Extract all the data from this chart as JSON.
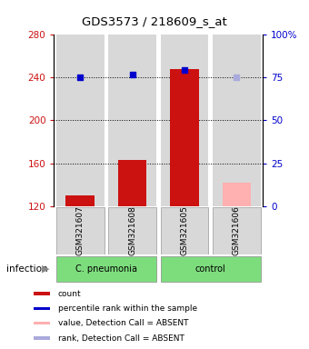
{
  "title": "GDS3573 / 218609_s_at",
  "samples": [
    "GSM321607",
    "GSM321608",
    "GSM321605",
    "GSM321606"
  ],
  "bar_values": [
    130,
    163,
    248,
    null
  ],
  "bar_absent_values": [
    null,
    null,
    null,
    142
  ],
  "bar_bottom": 120,
  "rank_values": [
    240,
    243,
    247,
    null
  ],
  "rank_absent_values": [
    null,
    null,
    null,
    240
  ],
  "ylim_left": [
    120,
    280
  ],
  "ylim_right": [
    0,
    100
  ],
  "yticks_left": [
    120,
    160,
    200,
    240,
    280
  ],
  "yticks_right": [
    0,
    25,
    50,
    75,
    100
  ],
  "ytick_labels_right": [
    "0",
    "25",
    "50",
    "75",
    "100%"
  ],
  "group_label": "infection",
  "bar_color": "#cc1111",
  "bar_absent_color": "#ffb0b0",
  "rank_color": "#0000cc",
  "rank_absent_color": "#aaaadd",
  "plot_bg": "#d8d8d8",
  "group_color": "#7ddd7d",
  "bar_width": 0.55,
  "grid_lines": [
    160,
    200,
    240
  ],
  "legend_items": [
    {
      "label": "count",
      "color": "#cc1111"
    },
    {
      "label": "percentile rank within the sample",
      "color": "#0000cc"
    },
    {
      "label": "value, Detection Call = ABSENT",
      "color": "#ffb0b0"
    },
    {
      "label": "rank, Detection Call = ABSENT",
      "color": "#aaaadd"
    }
  ]
}
